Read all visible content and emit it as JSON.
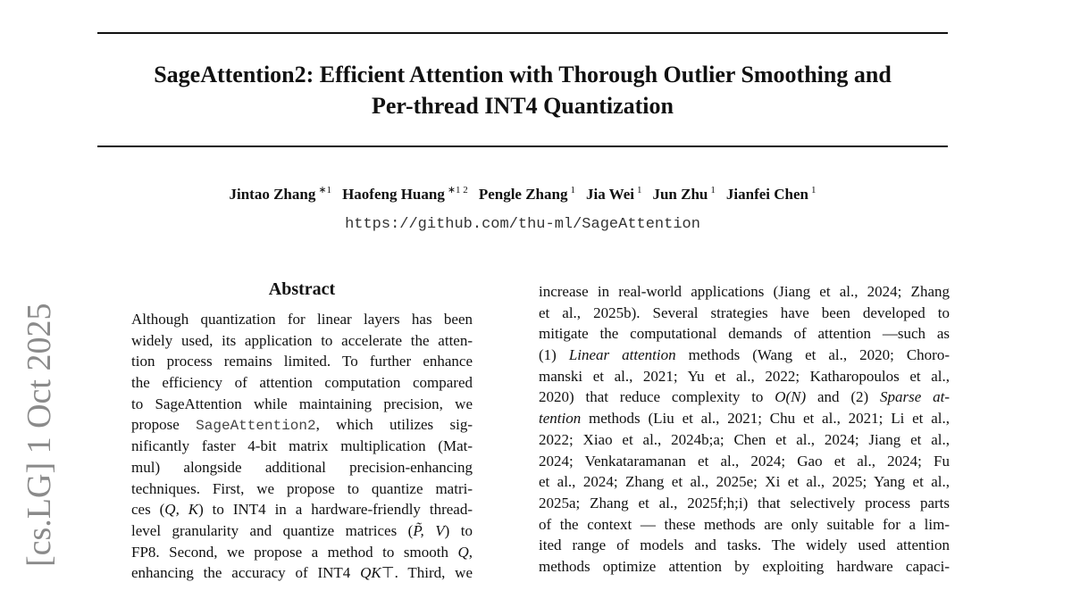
{
  "stamp": "[cs.LG] 1 Oct 2025",
  "header": {
    "title": [
      "SageAttention2: Efficient Attention with Thorough Outlier Smoothing and",
      "Per-thread INT4 Quantization"
    ],
    "authors": [
      {
        "name": "Jintao Zhang",
        "sup": "∗1"
      },
      {
        "name": "Haofeng Huang",
        "sup": "∗1 2"
      },
      {
        "name": "Pengle Zhang",
        "sup": "1"
      },
      {
        "name": "Jia Wei",
        "sup": "1"
      },
      {
        "name": "Jun Zhu",
        "sup": "1"
      },
      {
        "name": "Jianfei Chen",
        "sup": "1"
      }
    ],
    "url": "https://github.com/thu-ml/SageAttention"
  },
  "abstract": {
    "heading": "Abstract",
    "lines": [
      [
        "Although quantization for linear layers has been"
      ],
      [
        "widely used, its application to accelerate the atten-"
      ],
      [
        "tion process remains limited. To further enhance"
      ],
      [
        "the efficiency of attention computation compared"
      ],
      [
        "to SageAttention while maintaining precision, we"
      ],
      [
        "propose ",
        {
          "text": "SageAttention2",
          "style": "mono"
        },
        ", which utilizes sig-"
      ],
      [
        "nificantly faster 4-bit matrix multiplication (Mat-"
      ],
      [
        "mul) alongside additional precision-enhancing"
      ],
      [
        "techniques. First, we propose to quantize matri-"
      ],
      [
        "ces (",
        {
          "text": "Q, K",
          "style": "italic"
        },
        ") to INT4 in a hardware-friendly thread-"
      ],
      [
        "level granularity and quantize matrices (",
        {
          "text": "P̃, V",
          "style": "italic"
        },
        ") to"
      ],
      [
        "FP8. Second, we propose a method to smooth ",
        {
          "text": "Q",
          "style": "italic"
        },
        ","
      ],
      [
        "enhancing the accuracy of INT4 ",
        {
          "text": "QK",
          "style": "italic"
        },
        "⊤. Third, we"
      ]
    ]
  },
  "body": {
    "lines": [
      [
        "increase in real-world applications (Jiang et al., 2024; Zhang"
      ],
      [
        "et al., 2025b). Several strategies have been developed to"
      ],
      [
        "mitigate the computational demands of attention —such as"
      ],
      [
        "(1) ",
        {
          "text": "Linear attention",
          "style": "italic"
        },
        " methods (Wang et al., 2020; Choro-"
      ],
      [
        "manski et al., 2021; Yu et al., 2022; Katharopoulos et al.,"
      ],
      [
        "2020) that reduce complexity to ",
        {
          "text": "O(N)",
          "style": "italic"
        },
        " and (2) ",
        {
          "text": "Sparse at-",
          "style": "italic"
        }
      ],
      [
        {
          "text": "tention",
          "style": "italic"
        },
        " methods (Liu et al., 2021; Chu et al., 2021; Li et al.,"
      ],
      [
        "2022; Xiao et al., 2024b;a; Chen et al., 2024; Jiang et al.,"
      ],
      [
        "2024; Venkataramanan et al., 2024; Gao et al., 2024; Fu"
      ],
      [
        "et al., 2024; Zhang et al., 2025e; Xi et al., 2025; Yang et al.,"
      ],
      [
        "2025a; Zhang et al., 2025f;h;i) that selectively process parts"
      ],
      [
        "of the context — these methods are only suitable for a lim-"
      ],
      [
        "ited range of models and tasks. The widely used attention"
      ],
      [
        "methods optimize attention by exploiting hardware capaci-"
      ]
    ]
  }
}
